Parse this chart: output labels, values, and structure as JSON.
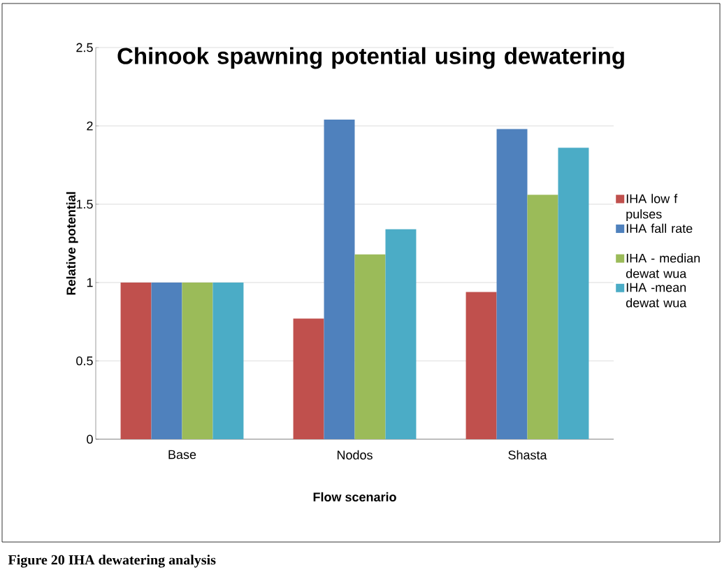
{
  "chart_data": {
    "type": "bar",
    "title": "Chinook spawning potential using dewatering",
    "xlabel": "Flow scenario",
    "ylabel": "Relative potential",
    "categories": [
      "Base",
      "Nodos",
      "Shasta"
    ],
    "series": [
      {
        "name": "IHA low f pulses",
        "color": "#c0504d",
        "values": [
          1.0,
          0.77,
          0.94
        ]
      },
      {
        "name": "IHA fall rate",
        "color": "#4f81bd",
        "values": [
          1.0,
          2.04,
          1.98
        ]
      },
      {
        "name": "IHA - median dewat wua",
        "color": "#9bbb59",
        "values": [
          1.0,
          1.18,
          1.56
        ]
      },
      {
        "name": "IHA -mean dewat wua",
        "color": "#4bacc6",
        "values": [
          1.0,
          1.34,
          1.86
        ]
      }
    ],
    "ylim": [
      0,
      2.5
    ],
    "yticks": [
      0,
      0.5,
      1,
      1.5,
      2,
      2.5
    ],
    "grid": "y",
    "legend": "right",
    "annotations": [
      "Figure 20 IHA dewatering analysis"
    ]
  }
}
